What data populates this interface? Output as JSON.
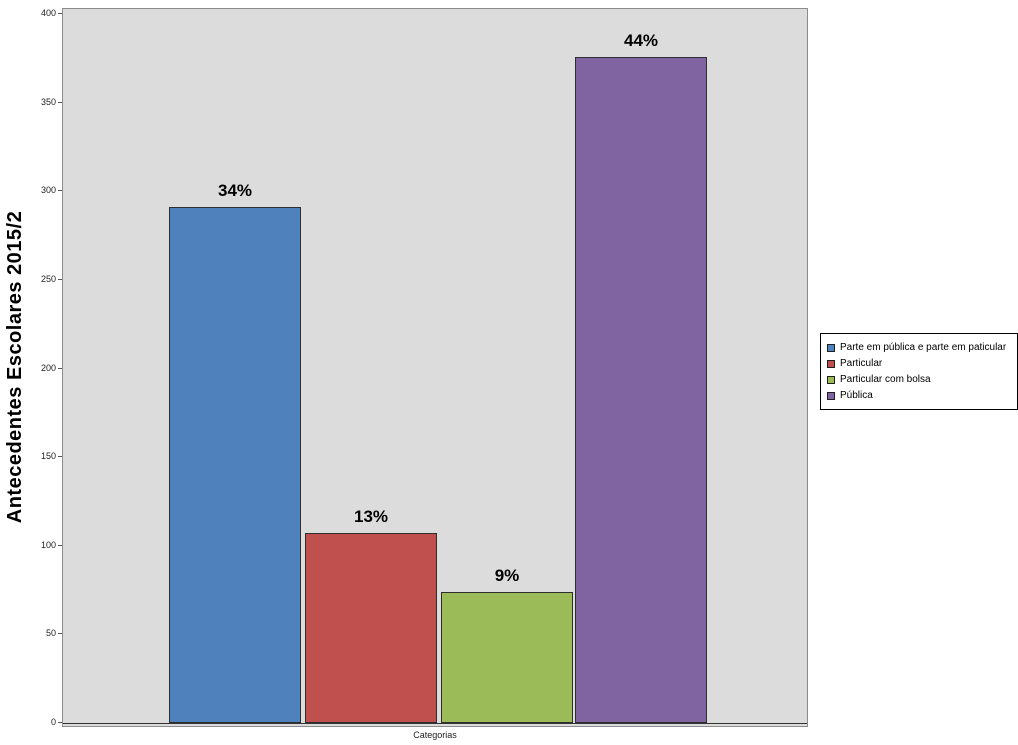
{
  "chart_data": {
    "type": "bar",
    "title": "",
    "ylabel": "Antecedentes Escolares 2015/2",
    "xlabel": "Categorias",
    "ylim": [
      0,
      400
    ],
    "yticks": [
      0,
      50,
      100,
      150,
      200,
      250,
      300,
      350,
      400
    ],
    "grid": false,
    "legend_position": "right",
    "plot_background": "#dcdcdc",
    "series": [
      {
        "name": "Parte em pública e parte em paticular",
        "value": 291,
        "label": "34%",
        "color": "#4F81BD"
      },
      {
        "name": "Particular",
        "value": 107,
        "label": "13%",
        "color": "#C0504D"
      },
      {
        "name": "Particular com bolsa",
        "value": 74,
        "label": "9%",
        "color": "#9BBB59"
      },
      {
        "name": "Pública",
        "value": 376,
        "label": "44%",
        "color": "#8064A2"
      }
    ]
  },
  "colors": {
    "panel_background": "#dcdcdc",
    "panel_border": "#8c8c8c",
    "legend_background": "#ffffff",
    "legend_border": "#000000",
    "bar_border": "#2e2e2e",
    "text": "#000000"
  }
}
